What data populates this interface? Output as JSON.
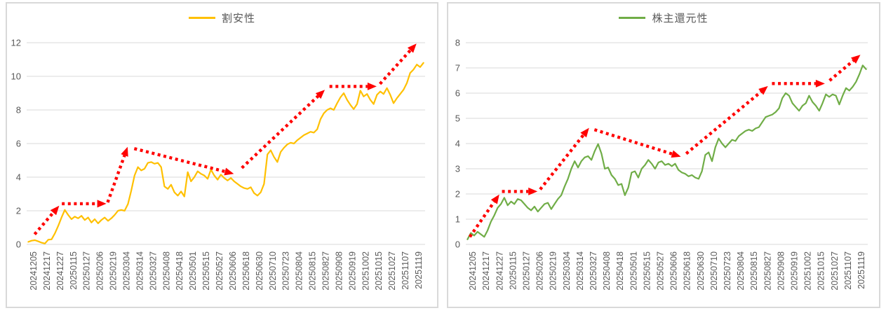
{
  "page": {
    "background": "#FFFFFF"
  },
  "styles": {
    "grid_color": "#D9D9D9",
    "axis_text_color": "#595959",
    "panel_border_color": "#D9D9D9",
    "arrow_color": "#FF0000"
  },
  "chart_data": [
    {
      "type": "line",
      "legend": "割安性",
      "legend_position": "top",
      "grid": true,
      "ylim": [
        0,
        12
      ],
      "y_step": 2,
      "y_tick_labels": [
        "0",
        "2",
        "4",
        "6",
        "8",
        "10",
        "12"
      ],
      "x_tick_labels": [
        "20241205",
        "20241217",
        "20241227",
        "20250115",
        "20250127",
        "20250206",
        "20250219",
        "20250304",
        "20250314",
        "20250327",
        "20250408",
        "20250418",
        "20250501",
        "20250515",
        "20250527",
        "20250606",
        "20250618",
        "20250630",
        "20250710",
        "20250723",
        "20250804",
        "20250815",
        "20250827",
        "20250908",
        "20250919",
        "20251002",
        "20251015",
        "20251027",
        "20251107",
        "20251119"
      ],
      "series": [
        {
          "name": "割安性",
          "color": "#FFC000",
          "values": [
            0.15,
            0.22,
            0.25,
            0.18,
            0.1,
            0.05,
            0.28,
            0.3,
            0.65,
            1.1,
            1.6,
            2.05,
            1.75,
            1.5,
            1.65,
            1.55,
            1.7,
            1.45,
            1.6,
            1.3,
            1.5,
            1.25,
            1.45,
            1.6,
            1.4,
            1.55,
            1.75,
            2.0,
            2.05,
            2.0,
            2.4,
            3.2,
            4.1,
            4.6,
            4.4,
            4.5,
            4.85,
            4.9,
            4.8,
            4.85,
            4.6,
            3.45,
            3.3,
            3.55,
            3.1,
            2.9,
            3.15,
            2.85,
            4.3,
            3.75,
            4.0,
            4.35,
            4.2,
            4.1,
            3.9,
            4.45,
            4.1,
            3.85,
            4.15,
            3.95,
            3.8,
            3.95,
            3.75,
            3.6,
            3.45,
            3.35,
            3.3,
            3.4,
            3.05,
            2.9,
            3.1,
            3.6,
            5.35,
            5.6,
            5.2,
            4.9,
            5.5,
            5.75,
            5.95,
            6.05,
            6.0,
            6.2,
            6.35,
            6.5,
            6.6,
            6.7,
            6.65,
            6.85,
            7.45,
            7.8,
            8.0,
            8.1,
            8.0,
            8.4,
            8.75,
            9.0,
            8.6,
            8.3,
            8.05,
            8.35,
            9.15,
            8.8,
            8.95,
            8.6,
            8.35,
            8.9,
            9.1,
            8.95,
            9.3,
            8.9,
            8.4,
            8.7,
            8.95,
            9.2,
            9.6,
            10.2,
            10.4,
            10.7,
            10.55,
            10.8
          ]
        }
      ],
      "annotations": {
        "style": "dotted-arrow",
        "color": "#FF0000",
        "segments": [
          {
            "from": [
              0.1,
              0.6
            ],
            "to": [
              1.95,
              2.3
            ]
          },
          {
            "from": [
              2.15,
              2.42
            ],
            "to": [
              5.5,
              2.42
            ]
          },
          {
            "from": [
              5.6,
              2.5
            ],
            "to": [
              7.1,
              5.8
            ]
          },
          {
            "from": [
              7.6,
              5.7
            ],
            "to": [
              15.1,
              4.2
            ]
          },
          {
            "from": [
              15.7,
              4.55
            ],
            "to": [
              21.95,
              9.2
            ]
          },
          {
            "from": [
              22.3,
              9.4
            ],
            "to": [
              25.85,
              9.4
            ]
          },
          {
            "from": [
              26.1,
              9.55
            ],
            "to": [
              28.85,
              11.95
            ]
          }
        ]
      }
    },
    {
      "type": "line",
      "legend": "株主還元性",
      "legend_position": "top",
      "grid": true,
      "ylim": [
        0,
        8
      ],
      "y_step": 1,
      "y_tick_labels": [
        "0",
        "1",
        "2",
        "3",
        "4",
        "5",
        "6",
        "7",
        "8"
      ],
      "x_tick_labels": [
        "20241205",
        "20241217",
        "20241227",
        "20250115",
        "20250127",
        "20250206",
        "20250219",
        "20250304",
        "20250314",
        "20250327",
        "20250408",
        "20250418",
        "20250501",
        "20250515",
        "20250527",
        "20250606",
        "20250618",
        "20250630",
        "20250710",
        "20250723",
        "20250804",
        "20250815",
        "20250827",
        "20250908",
        "20250919",
        "20251002",
        "20251015",
        "20251027",
        "20251107",
        "20251119"
      ],
      "series": [
        {
          "name": "株主還元性",
          "color": "#70AD47",
          "values": [
            0.2,
            0.45,
            0.35,
            0.5,
            0.4,
            0.3,
            0.55,
            0.9,
            1.15,
            1.45,
            1.6,
            1.85,
            1.55,
            1.7,
            1.6,
            1.8,
            1.75,
            1.6,
            1.45,
            1.35,
            1.5,
            1.3,
            1.45,
            1.6,
            1.65,
            1.4,
            1.6,
            1.8,
            1.95,
            2.3,
            2.6,
            3.0,
            3.3,
            3.05,
            3.3,
            3.45,
            3.5,
            3.35,
            3.7,
            3.98,
            3.6,
            3.0,
            3.05,
            2.75,
            2.6,
            2.35,
            2.4,
            1.95,
            2.25,
            2.85,
            2.9,
            2.65,
            3.0,
            3.15,
            3.35,
            3.2,
            3.0,
            3.25,
            3.3,
            3.15,
            3.2,
            3.1,
            3.2,
            2.95,
            2.85,
            2.8,
            2.7,
            2.75,
            2.65,
            2.6,
            2.9,
            3.55,
            3.65,
            3.3,
            3.85,
            4.2,
            4.0,
            3.85,
            4.0,
            4.15,
            4.1,
            4.3,
            4.4,
            4.5,
            4.55,
            4.5,
            4.6,
            4.65,
            4.85,
            5.05,
            5.1,
            5.15,
            5.25,
            5.4,
            5.8,
            6.0,
            5.9,
            5.6,
            5.45,
            5.3,
            5.5,
            5.6,
            5.9,
            5.65,
            5.5,
            5.3,
            5.6,
            5.95,
            5.85,
            5.95,
            5.9,
            5.55,
            5.9,
            6.2,
            6.1,
            6.25,
            6.45,
            6.75,
            7.1,
            6.95
          ]
        }
      ],
      "annotations": {
        "style": "dotted-arrow",
        "color": "#FF0000",
        "segments": [
          {
            "from": [
              -0.2,
              0.3
            ],
            "to": [
              2.0,
              1.98
            ]
          },
          {
            "from": [
              2.2,
              2.1
            ],
            "to": [
              4.85,
              2.1
            ]
          },
          {
            "from": [
              5.05,
              2.18
            ],
            "to": [
              8.7,
              4.62
            ]
          },
          {
            "from": [
              9.1,
              4.55
            ],
            "to": [
              15.55,
              3.48
            ]
          },
          {
            "from": [
              15.95,
              3.6
            ],
            "to": [
              22.05,
              6.28
            ]
          },
          {
            "from": [
              22.35,
              6.38
            ],
            "to": [
              26.3,
              6.38
            ]
          },
          {
            "from": [
              26.65,
              6.5
            ],
            "to": [
              28.95,
              7.52
            ]
          }
        ]
      }
    }
  ]
}
